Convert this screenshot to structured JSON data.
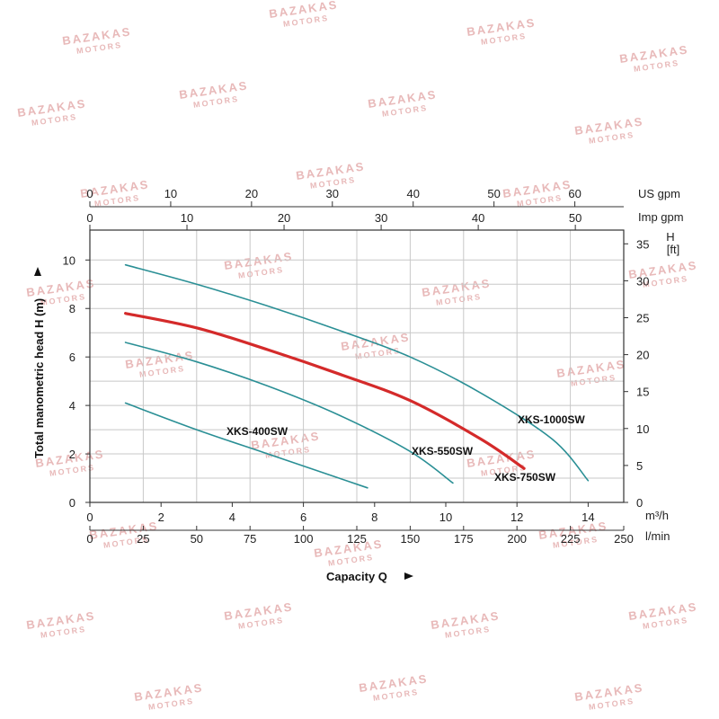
{
  "watermark": {
    "text": "BAZAKAS",
    "subtext": "MOTORS",
    "color": "#e8b9b9"
  },
  "chart_data": {
    "type": "line",
    "title": "",
    "xlabel": "Capacity Q",
    "ylabel": "Total manometric head H (m)",
    "xlim": [
      0,
      15
    ],
    "ylim": [
      0,
      10.5
    ],
    "grid": true,
    "x_unit": "m³/h",
    "y_unit": "m",
    "axes": {
      "bottom_primary": {
        "unit": "m³/h",
        "ticks": [
          0,
          2,
          4,
          6,
          8,
          10,
          12,
          14
        ]
      },
      "bottom_secondary": {
        "unit": "l/min",
        "ticks": [
          0,
          25,
          50,
          75,
          100,
          125,
          150,
          175,
          200,
          225,
          250
        ]
      },
      "top_us": {
        "unit": "US gpm",
        "ticks": [
          0,
          10,
          20,
          30,
          40,
          50,
          60
        ]
      },
      "top_imp": {
        "unit": "Imp gpm",
        "ticks": [
          0,
          10,
          20,
          30,
          40,
          50
        ]
      },
      "left": {
        "unit": "m",
        "ticks": [
          0,
          2,
          4,
          6,
          8,
          10
        ]
      },
      "right": {
        "unit": "H [ft]",
        "unit_line1": "H",
        "unit_line2": "[ft]",
        "ticks": [
          0,
          5,
          10,
          15,
          20,
          25,
          30,
          35
        ]
      }
    },
    "series": [
      {
        "name": "XKS-400SW",
        "color": "#2a8f95",
        "x": [
          1.0,
          3.0,
          5.0,
          7.0,
          7.8
        ],
        "y": [
          4.1,
          3.0,
          2.0,
          1.0,
          0.6
        ]
      },
      {
        "name": "XKS-550SW",
        "color": "#2a8f95",
        "x": [
          1.0,
          3.0,
          5.0,
          7.0,
          9.0,
          10.2
        ],
        "y": [
          6.6,
          5.8,
          4.8,
          3.6,
          2.1,
          0.8
        ]
      },
      {
        "name": "XKS-750SW",
        "color": "#d42a2a",
        "x": [
          1.0,
          3.0,
          5.0,
          7.0,
          9.0,
          11.0,
          12.2
        ],
        "y": [
          7.8,
          7.2,
          6.3,
          5.3,
          4.2,
          2.6,
          1.4
        ]
      },
      {
        "name": "XKS-1000SW",
        "color": "#2a8f95",
        "x": [
          1.0,
          3.0,
          5.0,
          7.0,
          9.0,
          11.0,
          13.0,
          14.0
        ],
        "y": [
          9.8,
          9.0,
          8.1,
          7.1,
          6.0,
          4.5,
          2.6,
          0.9
        ]
      }
    ]
  }
}
